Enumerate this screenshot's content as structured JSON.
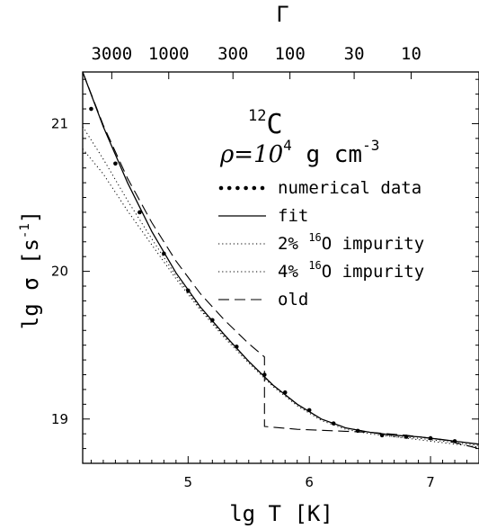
{
  "chart_data": {
    "type": "line",
    "xlabel": "lg T [K]",
    "ylabel": "lg σ  [s⁻¹]",
    "ylabel_parts": {
      "base": "lg σ  [s",
      "sup": "-1",
      "end": "]"
    },
    "top_axis_label": "Γ",
    "annotation_nucleus": {
      "sup": "12",
      "base": "C"
    },
    "annotation_density": {
      "base": "ρ=10",
      "sup": "4",
      "mid": " g cm",
      "sup2": "-3"
    },
    "xlim": [
      4.13,
      7.4
    ],
    "ylim": [
      18.7,
      21.35
    ],
    "x_ticks": [
      5,
      6,
      7
    ],
    "y_ticks": [
      19,
      20,
      21
    ],
    "top_ticks": [
      {
        "label": "3000",
        "x": 4.37
      },
      {
        "label": "1000",
        "x": 4.84
      },
      {
        "label": "300",
        "x": 5.37
      },
      {
        "label": "100",
        "x": 5.84
      },
      {
        "label": "30",
        "x": 6.37
      },
      {
        "label": "10",
        "x": 6.84
      }
    ],
    "legend": [
      {
        "label": "numerical data",
        "style": "bigdots"
      },
      {
        "label": "fit",
        "style": "solid"
      },
      {
        "label": "2% ",
        "sup": "16",
        "rest": "O impurity",
        "style": "dotted"
      },
      {
        "label": "4% ",
        "sup": "16",
        "rest": "O impurity",
        "style": "dotted"
      },
      {
        "label": "old",
        "style": "dashed"
      }
    ],
    "series": [
      {
        "name": "numerical data",
        "style": "points",
        "points": [
          [
            4.2,
            21.1
          ],
          [
            4.4,
            20.73
          ],
          [
            4.6,
            20.4
          ],
          [
            4.8,
            20.12
          ],
          [
            5.0,
            19.87
          ],
          [
            5.2,
            19.67
          ],
          [
            5.4,
            19.49
          ],
          [
            5.63,
            19.3
          ],
          [
            5.8,
            19.18
          ],
          [
            6.0,
            19.06
          ],
          [
            6.2,
            18.97
          ],
          [
            6.4,
            18.92
          ],
          [
            6.6,
            18.89
          ],
          [
            6.8,
            18.88
          ],
          [
            7.0,
            18.87
          ],
          [
            7.2,
            18.85
          ]
        ]
      },
      {
        "name": "fit",
        "style": "solid",
        "points": [
          [
            4.13,
            21.35
          ],
          [
            4.3,
            20.98
          ],
          [
            4.5,
            20.6
          ],
          [
            4.7,
            20.27
          ],
          [
            4.9,
            19.99
          ],
          [
            5.1,
            19.76
          ],
          [
            5.3,
            19.57
          ],
          [
            5.5,
            19.39
          ],
          [
            5.7,
            19.23
          ],
          [
            5.9,
            19.1
          ],
          [
            6.1,
            19.0
          ],
          [
            6.3,
            18.94
          ],
          [
            6.5,
            18.91
          ],
          [
            6.7,
            18.89
          ],
          [
            6.9,
            18.88
          ],
          [
            7.1,
            18.86
          ],
          [
            7.4,
            18.83
          ]
        ]
      },
      {
        "name": "2% 16O impurity",
        "style": "dotted",
        "points": [
          [
            4.13,
            20.98
          ],
          [
            4.3,
            20.76
          ],
          [
            4.5,
            20.48
          ],
          [
            4.7,
            20.22
          ],
          [
            4.9,
            19.97
          ],
          [
            5.1,
            19.75
          ],
          [
            5.3,
            19.56
          ],
          [
            5.5,
            19.39
          ],
          [
            5.7,
            19.23
          ],
          [
            5.9,
            19.1
          ],
          [
            6.1,
            19.0
          ],
          [
            6.3,
            18.94
          ],
          [
            6.5,
            18.91
          ],
          [
            6.7,
            18.88
          ],
          [
            6.9,
            18.87
          ],
          [
            7.1,
            18.85
          ],
          [
            7.4,
            18.82
          ]
        ]
      },
      {
        "name": "4% 16O impurity",
        "style": "dotted",
        "points": [
          [
            4.13,
            20.83
          ],
          [
            4.3,
            20.66
          ],
          [
            4.5,
            20.41
          ],
          [
            4.7,
            20.18
          ],
          [
            4.9,
            19.95
          ],
          [
            5.1,
            19.74
          ],
          [
            5.3,
            19.55
          ],
          [
            5.5,
            19.38
          ],
          [
            5.7,
            19.22
          ],
          [
            5.9,
            19.09
          ],
          [
            6.1,
            18.99
          ],
          [
            6.3,
            18.93
          ],
          [
            6.5,
            18.9
          ],
          [
            6.7,
            18.88
          ],
          [
            6.9,
            18.86
          ],
          [
            7.1,
            18.84
          ],
          [
            7.4,
            18.81
          ]
        ]
      },
      {
        "name": "old",
        "style": "dashed",
        "points": [
          [
            4.13,
            21.35
          ],
          [
            4.3,
            20.99
          ],
          [
            4.5,
            20.63
          ],
          [
            4.7,
            20.33
          ],
          [
            4.9,
            20.07
          ],
          [
            5.1,
            19.85
          ],
          [
            5.3,
            19.67
          ],
          [
            5.5,
            19.51
          ],
          [
            5.63,
            19.42
          ],
          [
            5.63,
            18.95
          ],
          [
            5.9,
            18.93
          ],
          [
            6.2,
            18.92
          ],
          [
            6.5,
            18.91
          ],
          [
            6.8,
            18.89
          ],
          [
            7.1,
            18.86
          ],
          [
            7.4,
            18.8
          ]
        ]
      }
    ]
  }
}
